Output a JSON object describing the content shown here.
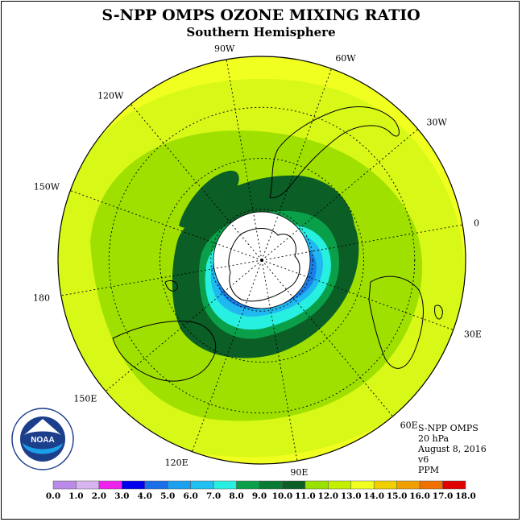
{
  "title": "S-NPP OMPS OZONE MIXING RATIO",
  "subtitle": "Southern Hemisphere",
  "info": {
    "line1": "S-NPP OMPS",
    "line2": "20 hPa",
    "line3": "August 8, 2016",
    "line4": "v6",
    "line5": "PPM"
  },
  "longitude_labels": [
    "90W",
    "60W",
    "30W",
    "0",
    "30E",
    "60E",
    "90E",
    "120E",
    "150E",
    "180",
    "150W",
    "120W"
  ],
  "logo": {
    "text": "NOAA",
    "ring_text": "NATIONAL OCEANIC AND ATMOSPHERIC ADMINISTRATION",
    "ring_text_bottom": "U.S. DEPARTMENT OF COMMERCE"
  },
  "colorbar": {
    "ticks": [
      "0.0",
      "1.0",
      "2.0",
      "3.0",
      "4.0",
      "5.0",
      "6.0",
      "7.0",
      "8.0",
      "9.0",
      "10.0",
      "11.0",
      "12.0",
      "13.0",
      "14.0",
      "15.0",
      "16.0",
      "17.0",
      "18.0"
    ],
    "colors": [
      "#b98ae8",
      "#d8b4f0",
      "#ee22ee",
      "#0000ee",
      "#1a6fe8",
      "#1da0f0",
      "#20c0f0",
      "#28f0e0",
      "#0aa04a",
      "#087a32",
      "#0b5e26",
      "#9ae000",
      "#c2f000",
      "#f0ff20",
      "#f0d000",
      "#f0a000",
      "#f07000",
      "#e00000",
      "#8b5a3c"
    ]
  },
  "palette": {
    "outer_yellow": "#f0ff20",
    "yellow_green": "#d8f818",
    "light_green": "#a0e000",
    "mid_green": "#0aa04a",
    "dark_green": "#0b5e26",
    "cyan": "#28f0e0",
    "light_blue": "#20b8f0",
    "blue": "#1a7fe8",
    "hole": "#ffffff"
  }
}
